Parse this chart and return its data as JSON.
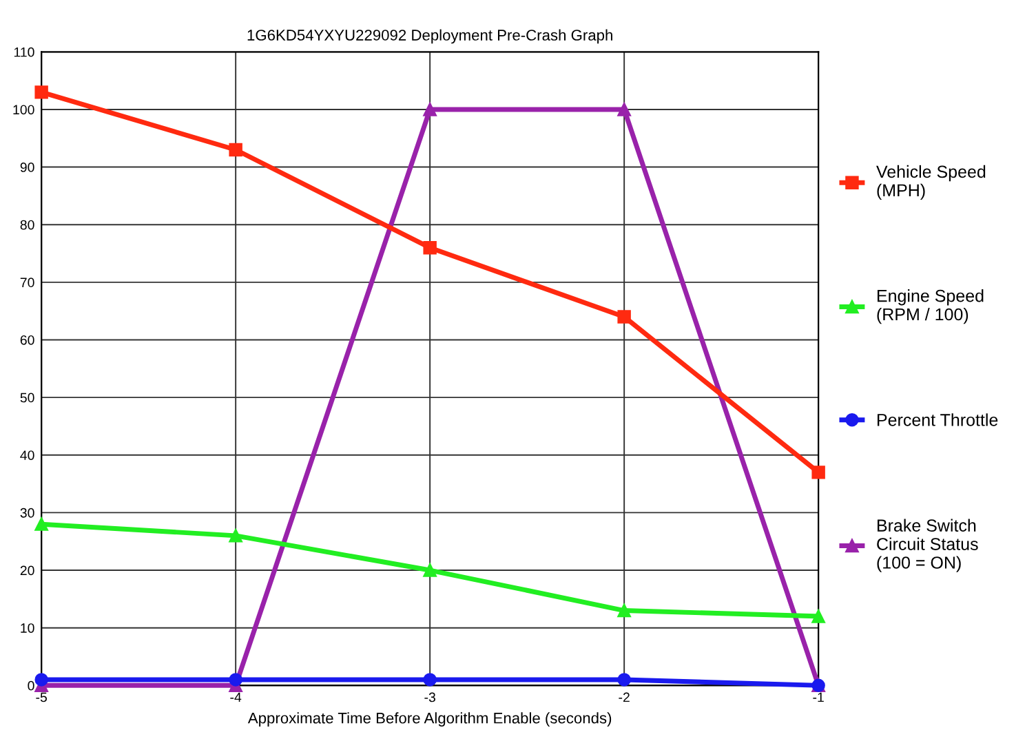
{
  "chart_data": {
    "type": "line",
    "title": "1G6KD54YXYU229092 Deployment Pre-Crash Graph",
    "xlabel": "Approximate Time Before Algorithm Enable (seconds)",
    "x": [
      -5,
      -4,
      -3,
      -2,
      -1
    ],
    "series": [
      {
        "name": "Vehicle Speed\n(MPH)",
        "color": "#ff2a10",
        "marker": "square",
        "values": [
          103,
          93,
          76,
          64,
          37
        ]
      },
      {
        "name": "Engine Speed\n(RPM / 100)",
        "color": "#22ee22",
        "marker": "triangle",
        "values": [
          28,
          26,
          20,
          13,
          12
        ]
      },
      {
        "name": "Percent Throttle",
        "color": "#1a1aee",
        "marker": "circle",
        "values": [
          1,
          1,
          1,
          1,
          0
        ]
      },
      {
        "name": "Brake Switch\nCircuit Status\n(100 = ON)",
        "color": "#9922aa",
        "marker": "triangle",
        "values": [
          0,
          0,
          100,
          100,
          0
        ]
      }
    ],
    "xlim": [
      -5,
      -1
    ],
    "xticks": [
      -5,
      -4,
      -3,
      -2,
      -1
    ],
    "ylim": [
      0,
      110
    ],
    "yticks": [
      0,
      10,
      20,
      30,
      40,
      50,
      60,
      70,
      80,
      90,
      100,
      110
    ],
    "grid": true,
    "legend": "right",
    "line_style": "solid"
  }
}
